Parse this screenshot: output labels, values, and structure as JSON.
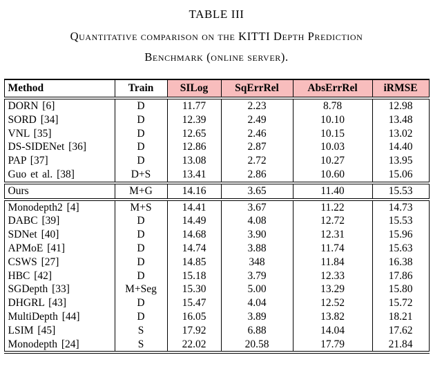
{
  "title": "TABLE III",
  "caption": {
    "line1": "Quantitative comparison on the KITTI Depth Prediction",
    "line2": "Benchmark (online server)."
  },
  "table": {
    "highlight_color": "#F8BDBD",
    "columns": [
      {
        "label": "Method",
        "highlight": false
      },
      {
        "label": "Train",
        "highlight": false
      },
      {
        "label": "SILog",
        "highlight": true
      },
      {
        "label": "SqErrRel",
        "highlight": true
      },
      {
        "label": "AbsErrRel",
        "highlight": true
      },
      {
        "label": "iRMSE",
        "highlight": true
      }
    ],
    "sections": [
      {
        "rows": [
          {
            "cells": [
              "DORN [6]",
              "D",
              "11.77",
              "2.23",
              "8.78",
              "12.98"
            ]
          },
          {
            "cells": [
              "SORD [34]",
              "D",
              "12.39",
              "2.49",
              "10.10",
              "13.48"
            ]
          },
          {
            "cells": [
              "VNL [35]",
              "D",
              "12.65",
              "2.46",
              "10.15",
              "13.02"
            ]
          },
          {
            "cells": [
              "DS-SIDENet [36]",
              "D",
              "12.86",
              "2.87",
              "10.03",
              "14.40"
            ]
          },
          {
            "cells": [
              "PAP [37]",
              "D",
              "13.08",
              "2.72",
              "10.27",
              "13.95"
            ]
          },
          {
            "cells": [
              "Guo et al. [38]",
              "D+S",
              "13.41",
              "2.86",
              "10.60",
              "15.06"
            ]
          }
        ]
      },
      {
        "rows": [
          {
            "cells": [
              "Ours",
              "M+G",
              "14.16",
              "3.65",
              "11.40",
              "15.53"
            ]
          }
        ]
      },
      {
        "rows": [
          {
            "cells": [
              "Monodepth2 [4]",
              "M+S",
              "14.41",
              "3.67",
              "11.22",
              "14.73"
            ]
          },
          {
            "cells": [
              "DABC [39]",
              "D",
              "14.49",
              "4.08",
              "12.72",
              "15.53"
            ]
          },
          {
            "cells": [
              "SDNet [40]",
              "D",
              "14.68",
              "3.90",
              "12.31",
              "15.96"
            ]
          },
          {
            "cells": [
              "APMoE [41]",
              "D",
              "14.74",
              "3.88",
              "11.74",
              "15.63"
            ]
          },
          {
            "cells": [
              "CSWS [27]",
              "D",
              "14.85",
              "348",
              "11.84",
              "16.38"
            ]
          },
          {
            "cells": [
              "HBC [42]",
              "D",
              "15.18",
              "3.79",
              "12.33",
              "17.86"
            ]
          },
          {
            "cells": [
              "SGDepth [33]",
              "M+Seg",
              "15.30",
              "5.00",
              "13.29",
              "15.80"
            ]
          },
          {
            "cells": [
              "DHGRL [43]",
              "D",
              "15.47",
              "4.04",
              "12.52",
              "15.72"
            ]
          },
          {
            "cells": [
              "MultiDepth [44]",
              "D",
              "16.05",
              "3.89",
              "13.82",
              "18.21"
            ]
          },
          {
            "cells": [
              "LSIM [45]",
              "S",
              "17.92",
              "6.88",
              "14.04",
              "17.62"
            ]
          },
          {
            "cells": [
              "Monodepth [24]",
              "S",
              "22.02",
              "20.58",
              "17.79",
              "21.84"
            ]
          }
        ]
      }
    ]
  }
}
